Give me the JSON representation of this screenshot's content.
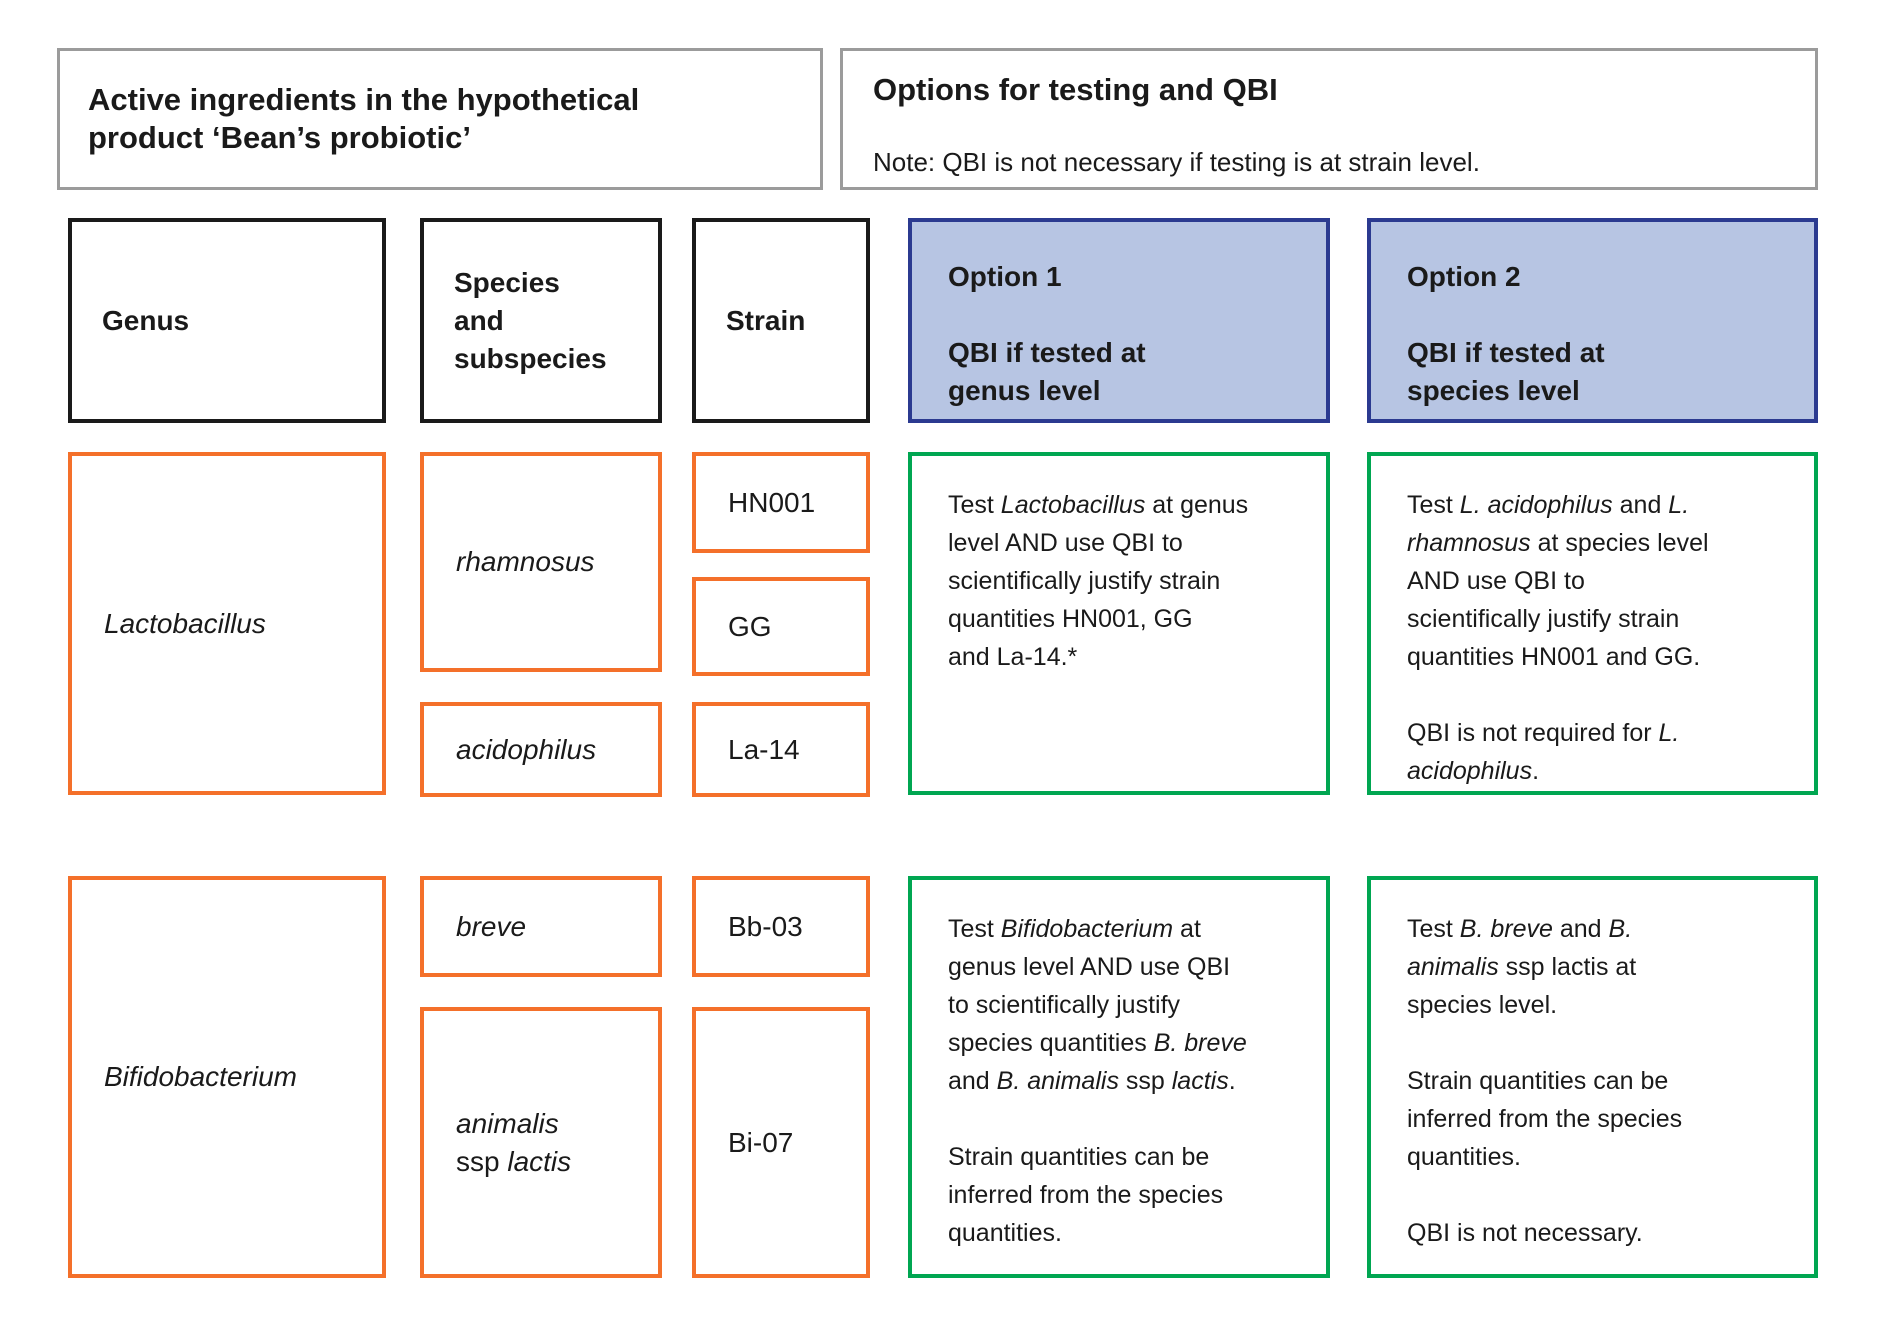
{
  "colors": {
    "orange": "#F4702A",
    "green": "#00A651",
    "blue-border": "#2B3A90",
    "blue-fill": "#B7C5E3",
    "gray-border": "#9B9B9B",
    "ink": "#1A1A1A"
  },
  "header_left": {
    "title": "Active ingredients in the hypothetical\nproduct ‘Bean’s probiotic’"
  },
  "header_right": {
    "title": "Options for testing and QBI",
    "note": "Note: QBI is not necessary if testing is at strain level."
  },
  "columns": {
    "genus_label": "Genus",
    "species_label": "Species\nand\nsubspecies",
    "strain_label": "Strain",
    "option1_title": "Option 1\n\nQBI if tested at\ngenus level",
    "option2_title": "Option 2\n\nQBI if tested at\nspecies level"
  },
  "rows": [
    {
      "genus": [
        {
          "t": "Lactobacillus",
          "i": true
        }
      ],
      "species1": [
        {
          "t": "rhamnosus",
          "i": true
        }
      ],
      "species2": [
        {
          "t": "acidophilus",
          "i": true
        }
      ],
      "strain1": "HN001",
      "strain2": "GG",
      "strain3": "La-14",
      "option1": [
        {
          "t": "Test "
        },
        {
          "t": "Lactobacillus",
          "i": true
        },
        {
          "t": " at genus\nlevel AND use QBI to\nscientifically justify strain\nquantities HN001, GG\nand La-14.*"
        }
      ],
      "option2": [
        {
          "t": "Test "
        },
        {
          "t": "L. acidophilus",
          "i": true
        },
        {
          "t": " and "
        },
        {
          "t": "L.",
          "i": true
        },
        {
          "t": "\n"
        },
        {
          "t": "rhamnosus",
          "i": true
        },
        {
          "t": " at species level\nAND use QBI to\nscientifically justify strain\nquantities HN001 and GG.\n\nQBI is not required for "
        },
        {
          "t": "L.",
          "i": true
        },
        {
          "t": "\n"
        },
        {
          "t": "acidophilus",
          "i": true
        },
        {
          "t": "."
        }
      ]
    },
    {
      "genus": [
        {
          "t": "Bifidobacterium",
          "i": true
        }
      ],
      "species1": [
        {
          "t": "breve",
          "i": true
        }
      ],
      "species2": [
        {
          "t": "animalis",
          "i": true
        },
        {
          "t": "\nssp "
        },
        {
          "t": "lactis",
          "i": true
        }
      ],
      "strain1": "Bb-03",
      "strain2": "Bi-07",
      "option1": [
        {
          "t": "Test "
        },
        {
          "t": "Bifidobacterium",
          "i": true
        },
        {
          "t": " at\ngenus level AND use QBI\nto scientifically justify\nspecies quantities "
        },
        {
          "t": "B. breve",
          "i": true
        },
        {
          "t": "\nand "
        },
        {
          "t": "B. animalis",
          "i": true
        },
        {
          "t": " ssp "
        },
        {
          "t": "lactis",
          "i": true
        },
        {
          "t": ".\n\nStrain quantities can be\ninferred from the species\nquantities."
        }
      ],
      "option2": [
        {
          "t": "Test "
        },
        {
          "t": "B. breve",
          "i": true
        },
        {
          "t": " and "
        },
        {
          "t": "B.",
          "i": true
        },
        {
          "t": "\n"
        },
        {
          "t": "animalis",
          "i": true
        },
        {
          "t": " ssp lactis at\nspecies level.\n\nStrain quantities can be\ninferred from the species\nquantities.\n\nQBI is not necessary."
        }
      ]
    }
  ]
}
